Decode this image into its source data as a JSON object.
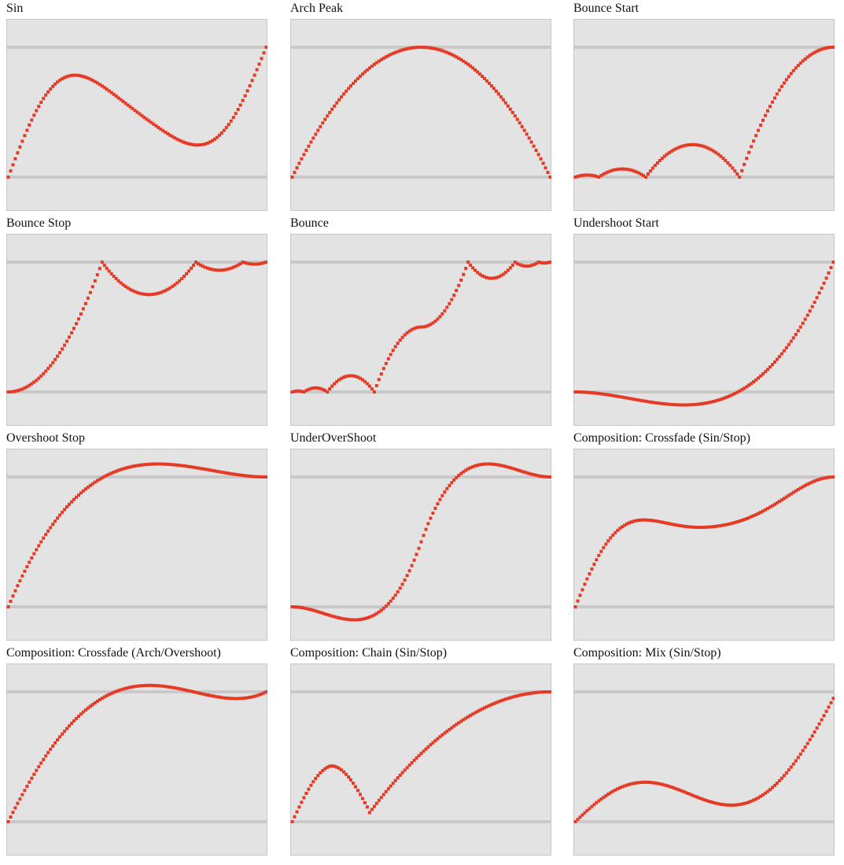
{
  "colors": {
    "background": "#e3e3e3",
    "border": "#c7c7c7",
    "guide": "#c9c9c9",
    "curve": "#e53a25"
  },
  "chart_data": [
    {
      "type": "scatter",
      "title": "Sin",
      "func": "sin",
      "ylim": [
        0,
        1
      ]
    },
    {
      "type": "scatter",
      "title": "Arch Peak",
      "func": "archPeak",
      "ylim": [
        0,
        1
      ]
    },
    {
      "type": "scatter",
      "title": "Bounce Start",
      "func": "bounceStart",
      "ylim": [
        0,
        1
      ]
    },
    {
      "type": "scatter",
      "title": "Bounce Stop",
      "func": "bounceStop",
      "ylim": [
        0,
        1
      ]
    },
    {
      "type": "scatter",
      "title": "Bounce",
      "func": "bounce",
      "ylim": [
        0,
        1
      ]
    },
    {
      "type": "scatter",
      "title": "Undershoot Start",
      "func": "undershootStart",
      "ylim": [
        0,
        1
      ]
    },
    {
      "type": "scatter",
      "title": "Overshoot Stop",
      "func": "overshootStop",
      "ylim": [
        0,
        1
      ]
    },
    {
      "type": "scatter",
      "title": "UnderOverShoot",
      "func": "underOverShoot",
      "ylim": [
        0,
        1
      ]
    },
    {
      "type": "scatter",
      "title": "Composition: Crossfade (Sin/Stop)",
      "func": "crossfadeSinStop",
      "ylim": [
        0,
        1
      ]
    },
    {
      "type": "scatter",
      "title": "Composition: Crossfade (Arch/Overshoot)",
      "func": "crossfadeArchOvershoot",
      "ylim": [
        0,
        1
      ]
    },
    {
      "type": "scatter",
      "title": "Composition: Chain (Sin/Stop)",
      "func": "chainSinStop",
      "ylim": [
        0,
        1
      ]
    },
    {
      "type": "scatter",
      "title": "Composition: Mix (Sin/Stop)",
      "func": "mixSinStop",
      "ylim": [
        0,
        1
      ]
    }
  ]
}
